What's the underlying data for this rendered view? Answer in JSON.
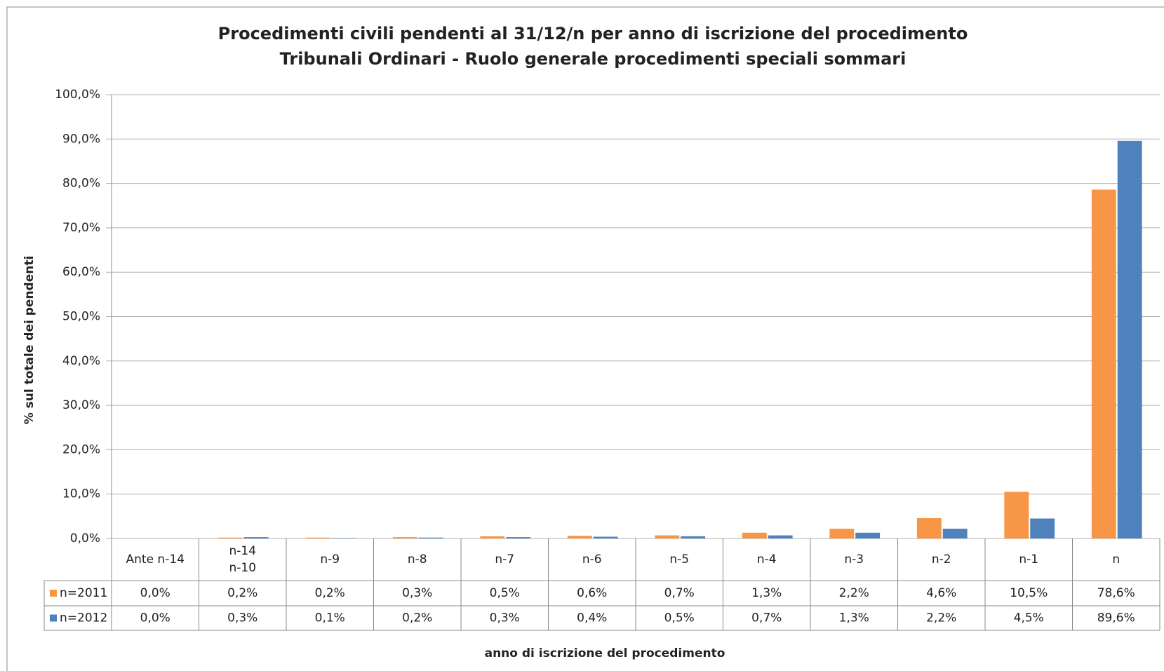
{
  "chart_data": {
    "type": "bar",
    "title": "Procedimenti civili pendenti al 31/12/n per anno di iscrizione del procedimento",
    "subtitle": "Tribunali Ordinari - Ruolo generale procedimenti speciali sommari",
    "x_label": "anno di iscrizione del procedimento",
    "y_label": "% sul totale dei pendenti",
    "categories": [
      "Ante n-14",
      "n-14\nn-10",
      "n-9",
      "n-8",
      "n-7",
      "n-6",
      "n-5",
      "n-4",
      "n-3",
      "n-2",
      "n-1",
      "n"
    ],
    "series": [
      {
        "name": "n=2011",
        "color": "#f79646",
        "values": [
          0.0,
          0.2,
          0.2,
          0.3,
          0.5,
          0.6,
          0.7,
          1.3,
          2.2,
          4.6,
          10.5,
          78.6
        ],
        "value_labels": [
          "0,0%",
          "0,2%",
          "0,2%",
          "0,3%",
          "0,5%",
          "0,6%",
          "0,7%",
          "1,3%",
          "2,2%",
          "4,6%",
          "10,5%",
          "78,6%"
        ]
      },
      {
        "name": "n=2012",
        "color": "#4f81bd",
        "values": [
          0.0,
          0.3,
          0.1,
          0.2,
          0.3,
          0.4,
          0.5,
          0.7,
          1.3,
          2.2,
          4.5,
          89.6
        ],
        "value_labels": [
          "0,0%",
          "0,3%",
          "0,1%",
          "0,2%",
          "0,3%",
          "0,4%",
          "0,5%",
          "0,7%",
          "1,3%",
          "2,2%",
          "4,5%",
          "89,6%"
        ]
      }
    ],
    "ylim": [
      0,
      100
    ],
    "yticks": [
      {
        "value": 0,
        "label": "0,0%"
      },
      {
        "value": 10,
        "label": "10,0%"
      },
      {
        "value": 20,
        "label": "20,0%"
      },
      {
        "value": 30,
        "label": "30,0%"
      },
      {
        "value": 40,
        "label": "40,0%"
      },
      {
        "value": 50,
        "label": "50,0%"
      },
      {
        "value": 60,
        "label": "60,0%"
      },
      {
        "value": 70,
        "label": "70,0%"
      },
      {
        "value": 80,
        "label": "80,0%"
      },
      {
        "value": 90,
        "label": "90,0%"
      },
      {
        "value": 100,
        "label": "100,0%"
      }
    ],
    "grid": true
  }
}
